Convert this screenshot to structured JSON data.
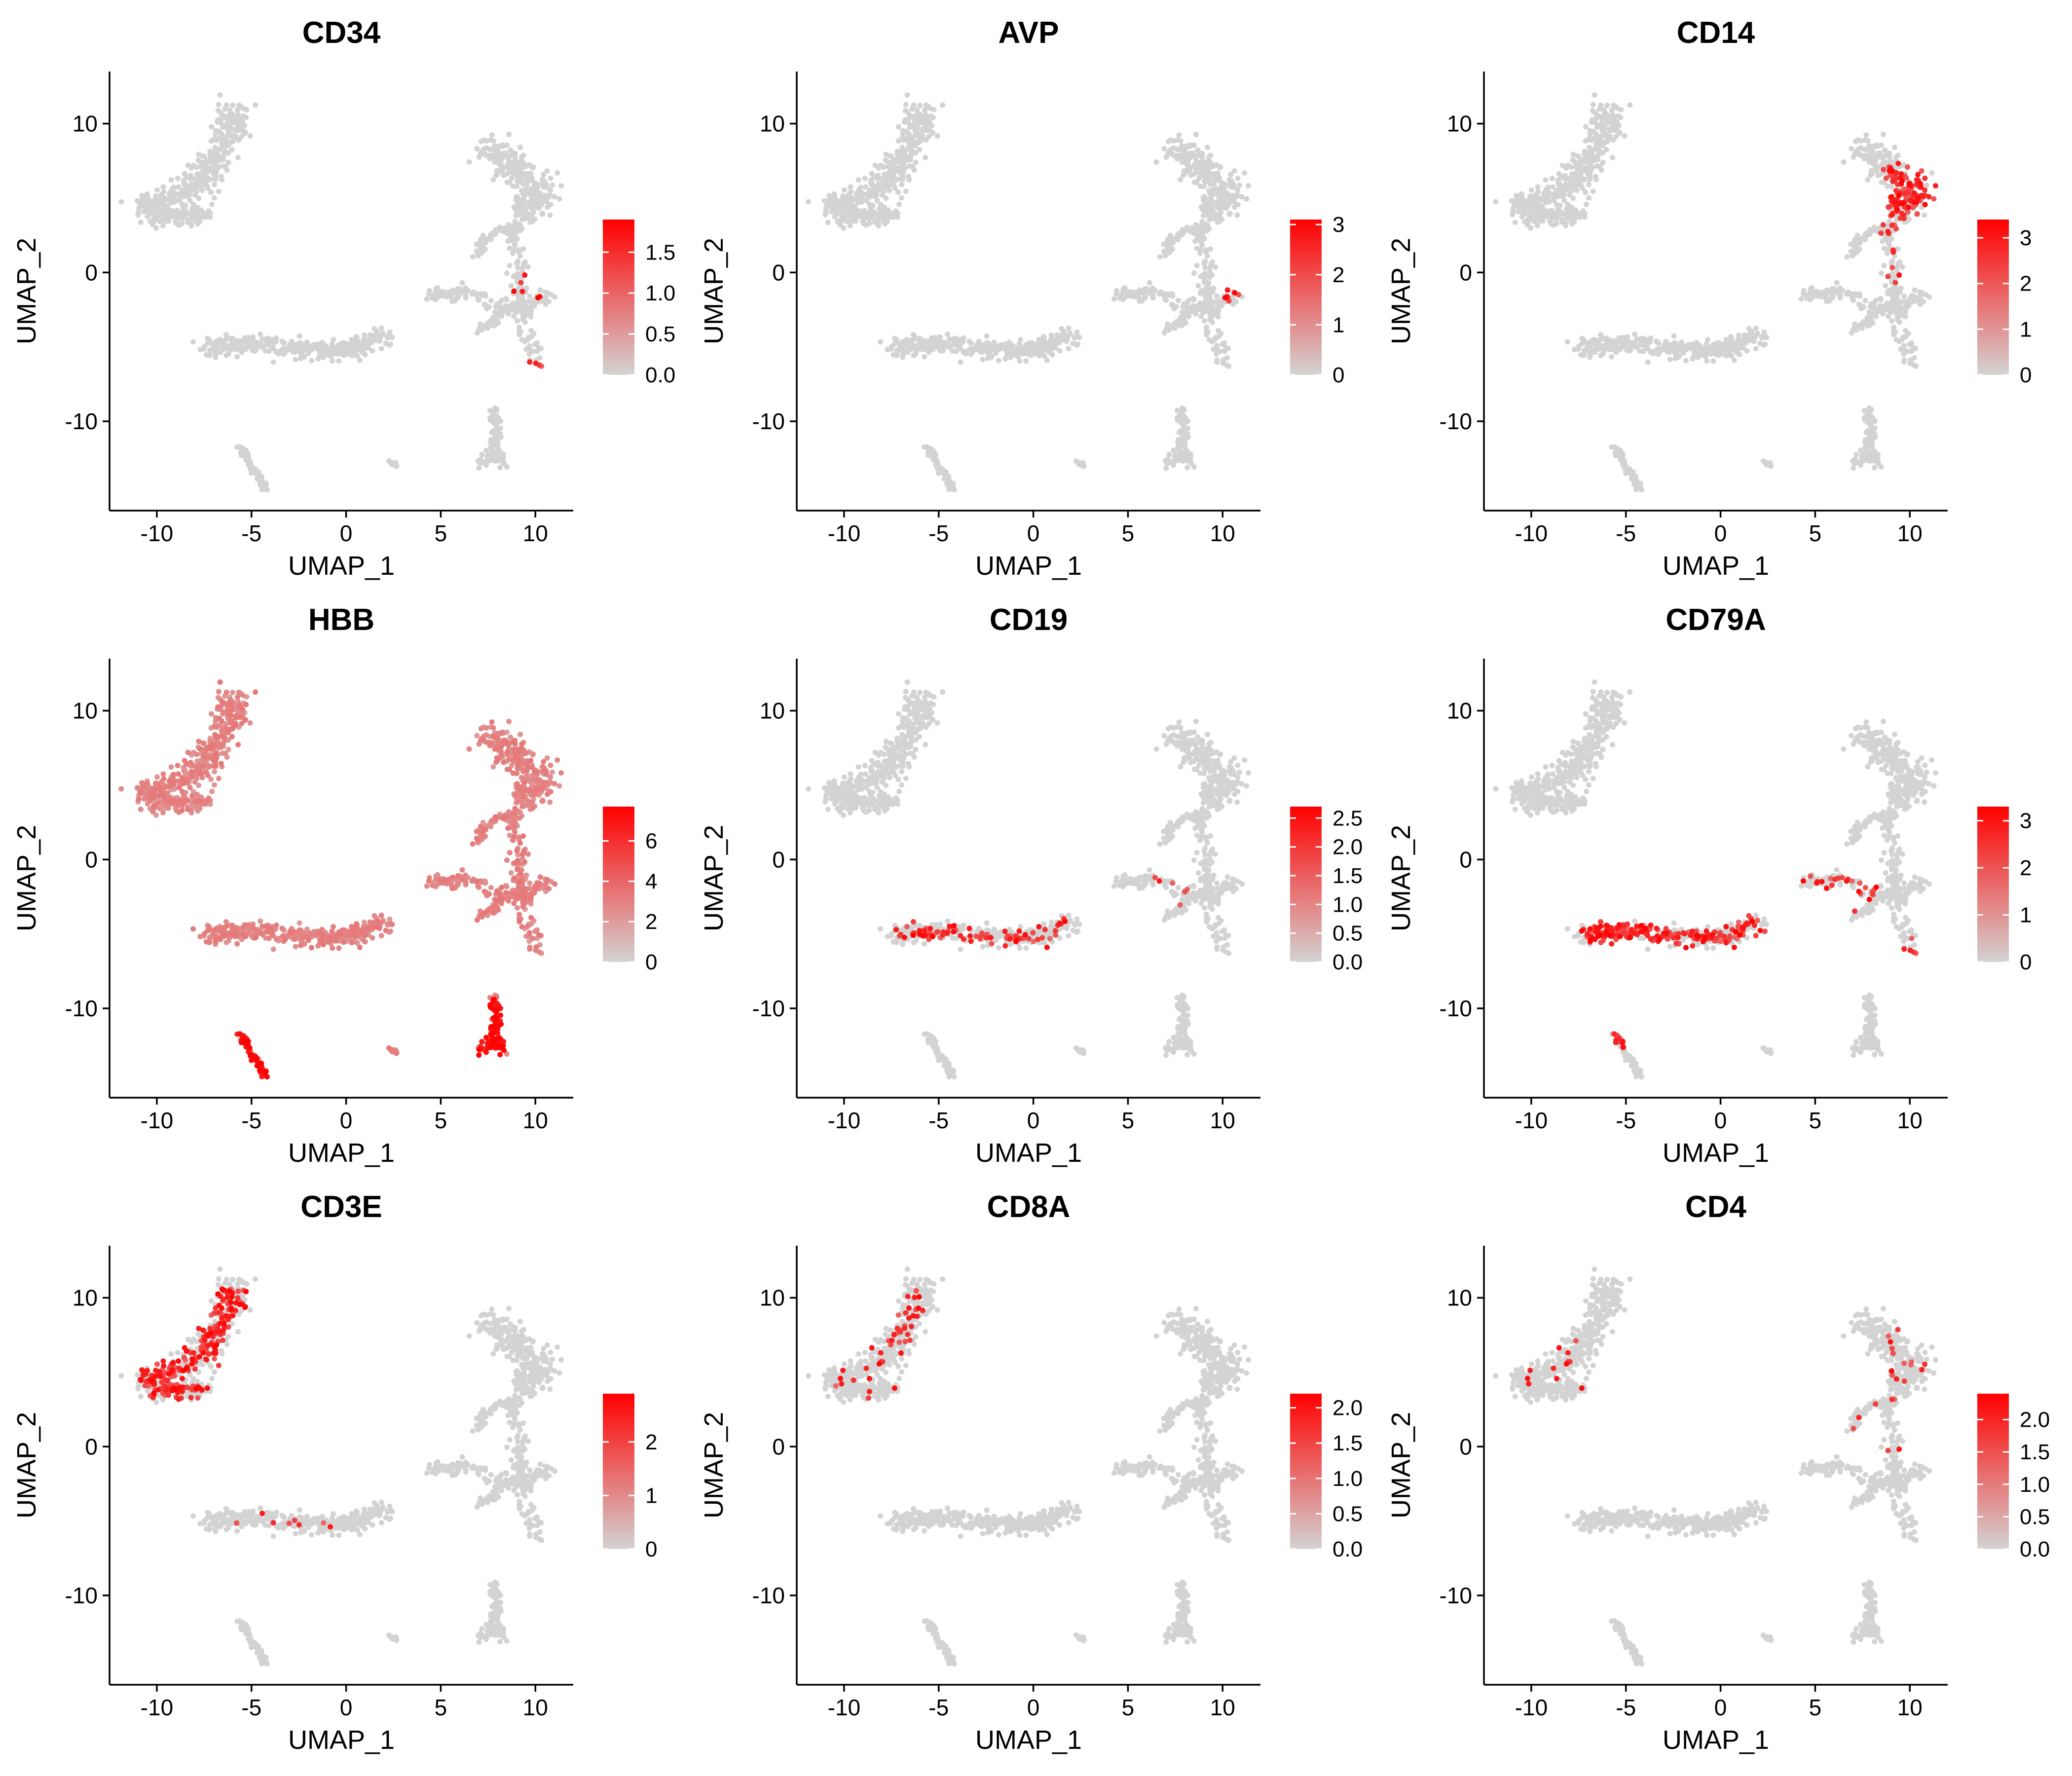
{
  "chart_data": [
    {
      "type": "scatter",
      "title": "CD34",
      "xlabel": "UMAP_1",
      "ylabel": "UMAP_2",
      "xlim": [
        -12.5,
        12
      ],
      "ylim": [
        -16,
        13.5
      ],
      "xticks": [
        -10,
        -5,
        0,
        5,
        10
      ],
      "yticks": [
        -10,
        0,
        10
      ],
      "legend": {
        "max": 1.9,
        "ticks": [
          "0.0",
          "0.5",
          "1.0",
          "1.5"
        ]
      },
      "hotspots": [
        {
          "x": 9.8,
          "y": -1.0,
          "r": 1.0,
          "p": 0.25
        },
        {
          "x": 10.1,
          "y": -6.0,
          "r": 0.6,
          "p": 0.6
        },
        {
          "x": 10.5,
          "y": 1.5,
          "r": 0.4,
          "p": 0.3
        }
      ]
    },
    {
      "type": "scatter",
      "title": "AVP",
      "xlabel": "UMAP_1",
      "ylabel": "UMAP_2",
      "xlim": [
        -12.5,
        12
      ],
      "ylim": [
        -16,
        13.5
      ],
      "xticks": [
        -10,
        -5,
        0,
        5,
        10
      ],
      "yticks": [
        -10,
        0,
        10
      ],
      "legend": {
        "max": 3.1,
        "ticks": [
          "0",
          "1",
          "2",
          "3"
        ]
      },
      "hotspots": [
        {
          "x": 10.5,
          "y": -1.5,
          "r": 0.5,
          "p": 0.5
        },
        {
          "x": 8.0,
          "y": 7.5,
          "r": 0.4,
          "p": 0.1
        }
      ]
    },
    {
      "type": "scatter",
      "title": "CD14",
      "xlabel": "UMAP_1",
      "ylabel": "UMAP_2",
      "xlim": [
        -12.5,
        12
      ],
      "ylim": [
        -16,
        13.5
      ],
      "xticks": [
        -10,
        -5,
        0,
        5,
        10
      ],
      "yticks": [
        -10,
        0,
        10
      ],
      "legend": {
        "max": 3.4,
        "ticks": [
          "0",
          "1",
          "2",
          "3"
        ]
      },
      "hotspots": [
        {
          "x": 9.6,
          "y": 5.5,
          "r": 1.9,
          "p": 0.85
        },
        {
          "x": 9.5,
          "y": 2.5,
          "r": 1.2,
          "p": 0.35
        },
        {
          "x": 8.8,
          "y": 0.5,
          "r": 1.5,
          "p": 0.12
        }
      ]
    },
    {
      "type": "scatter",
      "title": "HBB",
      "xlabel": "UMAP_1",
      "ylabel": "UMAP_2",
      "xlim": [
        -12.5,
        12
      ],
      "ylim": [
        -16,
        13.5
      ],
      "xticks": [
        -10,
        -5,
        0,
        5,
        10
      ],
      "yticks": [
        -10,
        0,
        10
      ],
      "legend": {
        "max": 7.7,
        "ticks": [
          "0",
          "2",
          "4",
          "6"
        ]
      },
      "base_level": 0.35,
      "hotspots": [
        {
          "x": -4.9,
          "y": -13.3,
          "r": 2.2,
          "p": 1.0,
          "lvl": 0.92
        },
        {
          "x": 7.9,
          "y": -11.8,
          "r": 2.5,
          "p": 1.0,
          "lvl": 0.92
        }
      ]
    },
    {
      "type": "scatter",
      "title": "CD19",
      "xlabel": "UMAP_1",
      "ylabel": "UMAP_2",
      "xlim": [
        -12.5,
        12
      ],
      "ylim": [
        -16,
        13.5
      ],
      "xticks": [
        -10,
        -5,
        0,
        5,
        10
      ],
      "yticks": [
        -10,
        0,
        10
      ],
      "legend": {
        "max": 2.7,
        "ticks": [
          "0.0",
          "0.5",
          "1.0",
          "1.5",
          "2.0",
          "2.5"
        ]
      },
      "hotspots": [
        {
          "x": -3.0,
          "y": -4.8,
          "r": 5.0,
          "p": 0.35
        },
        {
          "x": 6.5,
          "y": -1.5,
          "r": 2.0,
          "p": 0.12
        }
      ]
    },
    {
      "type": "scatter",
      "title": "CD79A",
      "xlabel": "UMAP_1",
      "ylabel": "UMAP_2",
      "xlim": [
        -12.5,
        12
      ],
      "ylim": [
        -16,
        13.5
      ],
      "xticks": [
        -10,
        -5,
        0,
        5,
        10
      ],
      "yticks": [
        -10,
        0,
        10
      ],
      "legend": {
        "max": 3.3,
        "ticks": [
          "0",
          "1",
          "2",
          "3"
        ]
      },
      "hotspots": [
        {
          "x": -5.0,
          "y": -5.0,
          "r": 2.6,
          "p": 0.95
        },
        {
          "x": -0.5,
          "y": -5.0,
          "r": 3.2,
          "p": 0.55
        },
        {
          "x": 6.0,
          "y": -1.5,
          "r": 2.3,
          "p": 0.55
        },
        {
          "x": 10.2,
          "y": -6.0,
          "r": 0.9,
          "p": 0.7
        },
        {
          "x": -5.5,
          "y": -12.3,
          "r": 0.6,
          "p": 0.4
        }
      ]
    },
    {
      "type": "scatter",
      "title": "CD3E",
      "xlabel": "UMAP_1",
      "ylabel": "UMAP_2",
      "xlim": [
        -12.5,
        12
      ],
      "ylim": [
        -16,
        13.5
      ],
      "xticks": [
        -10,
        -5,
        0,
        5,
        10
      ],
      "yticks": [
        -10,
        0,
        10
      ],
      "legend": {
        "max": 2.9,
        "ticks": [
          "0",
          "1",
          "2"
        ]
      },
      "hotspots": [
        {
          "x": -9.0,
          "y": 4.5,
          "r": 2.8,
          "p": 0.65
        },
        {
          "x": -6.3,
          "y": 8.0,
          "r": 2.8,
          "p": 0.7
        },
        {
          "x": -3.0,
          "y": -5.0,
          "r": 3.5,
          "p": 0.08
        }
      ]
    },
    {
      "type": "scatter",
      "title": "CD8A",
      "xlabel": "UMAP_1",
      "ylabel": "UMAP_2",
      "xlim": [
        -12.5,
        12
      ],
      "ylim": [
        -16,
        13.5
      ],
      "xticks": [
        -10,
        -5,
        0,
        5,
        10
      ],
      "yticks": [
        -10,
        0,
        10
      ],
      "legend": {
        "max": 2.2,
        "ticks": [
          "0.0",
          "0.5",
          "1.0",
          "1.5",
          "2.0"
        ]
      },
      "hotspots": [
        {
          "x": -6.0,
          "y": 8.5,
          "r": 3.0,
          "p": 0.2
        },
        {
          "x": -9.0,
          "y": 4.5,
          "r": 2.5,
          "p": 0.08
        }
      ]
    },
    {
      "type": "scatter",
      "title": "CD4",
      "xlabel": "UMAP_1",
      "ylabel": "UMAP_2",
      "xlim": [
        -12.5,
        12
      ],
      "ylim": [
        -16,
        13.5
      ],
      "xticks": [
        -10,
        -5,
        0,
        5,
        10
      ],
      "yticks": [
        -10,
        0,
        10
      ],
      "legend": {
        "max": 2.4,
        "ticks": [
          "0.0",
          "0.5",
          "1.0",
          "1.5",
          "2.0"
        ]
      },
      "hotspots": [
        {
          "x": 9.0,
          "y": 6.0,
          "r": 2.0,
          "p": 0.12
        },
        {
          "x": -8.5,
          "y": 5.0,
          "r": 2.5,
          "p": 0.06
        },
        {
          "x": 8.5,
          "y": 1.5,
          "r": 2.0,
          "p": 0.08
        }
      ]
    }
  ],
  "clusters": [
    {
      "path": [
        [
          -10.8,
          4.3
        ],
        [
          -9.5,
          5.0
        ],
        [
          -8.0,
          5.6
        ],
        [
          -6.9,
          7.2
        ],
        [
          -6.2,
          9.0
        ],
        [
          -5.8,
          11.0
        ]
      ],
      "width": 1.0,
      "n": 320
    },
    {
      "path": [
        [
          -10.8,
          4.3
        ],
        [
          -8.5,
          3.8
        ],
        [
          -7.3,
          3.9
        ]
      ],
      "width": 0.8,
      "n": 140
    },
    {
      "path": [
        [
          -7.3,
          -5.0
        ],
        [
          -5.0,
          -4.8
        ],
        [
          -2.5,
          -5.1
        ],
        [
          0.0,
          -5.3
        ],
        [
          2.3,
          -4.2
        ]
      ],
      "width": 0.75,
      "n": 360
    },
    {
      "path": [
        [
          7.5,
          8.3
        ],
        [
          8.5,
          7.5
        ],
        [
          9.8,
          6.0
        ],
        [
          10.2,
          4.5
        ],
        [
          9.2,
          4.5
        ]
      ],
      "width": 1.1,
      "n": 260
    },
    {
      "path": [
        [
          9.3,
          5.0
        ],
        [
          8.8,
          2.5
        ],
        [
          9.2,
          0.5
        ],
        [
          9.2,
          -2.5
        ],
        [
          10.1,
          -6.0
        ]
      ],
      "width": 0.5,
      "n": 160
    },
    {
      "path": [
        [
          4.5,
          -1.5
        ],
        [
          6.5,
          -1.3
        ],
        [
          8.3,
          -2.3
        ],
        [
          9.2,
          -2.5
        ],
        [
          10.7,
          -1.5
        ]
      ],
      "width": 0.55,
      "n": 150
    },
    {
      "path": [
        [
          6.8,
          1.0
        ],
        [
          7.5,
          2.5
        ],
        [
          8.5,
          3.0
        ]
      ],
      "width": 0.3,
      "n": 50
    },
    {
      "path": [
        [
          8.2,
          -2.5
        ],
        [
          7.8,
          -3.3
        ],
        [
          7.0,
          -3.8
        ]
      ],
      "width": 0.3,
      "n": 40
    },
    {
      "path": [
        [
          -5.6,
          -11.7
        ],
        [
          -5.0,
          -13.0
        ],
        [
          -4.2,
          -14.6
        ]
      ],
      "width": 0.25,
      "n": 70
    },
    {
      "path": [
        [
          7.8,
          -9.1
        ],
        [
          7.9,
          -11.0
        ],
        [
          7.7,
          -12.5
        ]
      ],
      "width": 0.3,
      "n": 70
    },
    {
      "path": [
        [
          7.0,
          -12.8
        ],
        [
          7.9,
          -12.2
        ],
        [
          8.5,
          -12.8
        ]
      ],
      "width": 0.35,
      "n": 50
    },
    {
      "path": [
        [
          2.2,
          -12.6
        ],
        [
          2.7,
          -13.0
        ]
      ],
      "width": 0.15,
      "n": 12
    }
  ],
  "colors": {
    "low": "#d3d3d3",
    "high": "#ff0000",
    "axis": "#000000",
    "background": "#ffffff"
  }
}
